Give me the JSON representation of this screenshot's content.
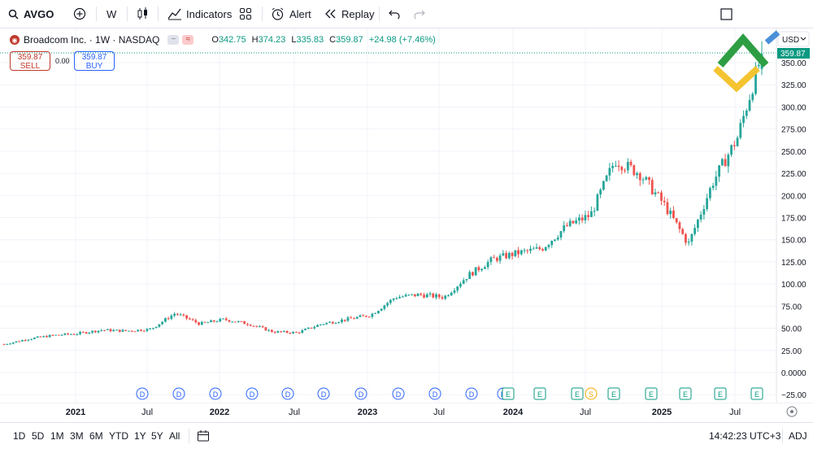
{
  "toolbar": {
    "symbol": "AVGO",
    "interval": "W",
    "indicators_label": "Indicators",
    "alert_label": "Alert",
    "replay_label": "Replay"
  },
  "legend": {
    "title": "Broadcom Inc. · 1W · NASDAQ",
    "open_key": "O",
    "open": "342.75",
    "high_key": "H",
    "high": "374.23",
    "low_key": "L",
    "low": "335.83",
    "close_key": "C",
    "close": "359.87",
    "change": "+24.98 (+7.46%)"
  },
  "trade": {
    "sell_price": "359.87",
    "sell_label": "SELL",
    "spread": "0.00",
    "buy_price": "359.87",
    "buy_label": "BUY"
  },
  "price_axis": {
    "currency": "USD",
    "ticks": [
      "350.00",
      "325.00",
      "300.00",
      "275.00",
      "250.00",
      "225.00",
      "200.00",
      "175.00",
      "150.00",
      "125.00",
      "100.00",
      "75.00",
      "50.00",
      "25.00",
      "0.0000",
      "−25.00"
    ],
    "last_price_label": "359.87"
  },
  "time_axis": {
    "ticks": [
      "2021",
      "Jul",
      "2022",
      "Jul",
      "2023",
      "Jul",
      "2024",
      "Jul",
      "2025",
      "Jul"
    ]
  },
  "bottombar": {
    "ranges": [
      "1D",
      "5D",
      "1M",
      "3M",
      "6M",
      "YTD",
      "1Y",
      "5Y",
      "All"
    ],
    "time": "14:42:23 UTC+3",
    "adj": "ADJ"
  },
  "colors": {
    "up": "#26a69a",
    "down": "#ef5350",
    "last_price_bg": "#089981",
    "accent": "#2962ff",
    "logo_green": "#2e9e44",
    "logo_yellow": "#f4c430",
    "logo_blue": "#4a90d9"
  },
  "events": {
    "markers": [
      "D",
      "D",
      "D",
      "D",
      "D",
      "D",
      "D",
      "D",
      "D",
      "D",
      "D",
      "E",
      "E",
      "E",
      "S",
      "E",
      "E",
      "E",
      "E",
      "E"
    ]
  },
  "chart_data": {
    "type": "candlestick",
    "title": "Broadcom Inc. · 1W · NASDAQ",
    "ylim": [
      -35,
      360
    ],
    "x": [
      "2020-11",
      "2021-01",
      "2021-03",
      "2021-05",
      "2021-07",
      "2021-09",
      "2021-11",
      "2022-01",
      "2022-03",
      "2022-05",
      "2022-07",
      "2022-09",
      "2022-11",
      "2023-01",
      "2023-03",
      "2023-05",
      "2023-06",
      "2023-08",
      "2023-10",
      "2023-12",
      "2024-02",
      "2024-04",
      "2024-06",
      "2024-08",
      "2024-10",
      "2024-12",
      "2025-01",
      "2025-03",
      "2025-04",
      "2025-06",
      "2025-07",
      "2025-09"
    ],
    "close": [
      32,
      38,
      42,
      44,
      48,
      47,
      49,
      67,
      55,
      60,
      55,
      46,
      45,
      55,
      60,
      65,
      85,
      88,
      85,
      110,
      128,
      135,
      140,
      165,
      178,
      240,
      225,
      190,
      145,
      215,
      265,
      359.87
    ],
    "last": {
      "open": 342.75,
      "high": 374.23,
      "low": 335.83,
      "close": 359.87
    }
  }
}
